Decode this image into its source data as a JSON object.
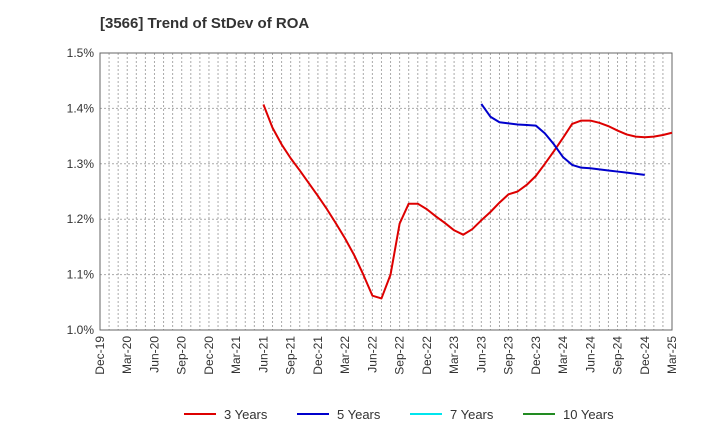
{
  "chart_data": {
    "type": "line",
    "title": "[3566]  Trend of StDev of ROA",
    "xlabel": "",
    "ylabel": "",
    "ylim": [
      1.0,
      1.5
    ],
    "yticks": [
      1.0,
      1.1,
      1.2,
      1.3,
      1.4,
      1.5
    ],
    "ytick_labels": [
      "1.0%",
      "1.1%",
      "1.2%",
      "1.3%",
      "1.4%",
      "1.5%"
    ],
    "x_start": "2019-12",
    "x_end": "2025-03",
    "xtick_labels": [
      "Dec-19",
      "Mar-20",
      "Jun-20",
      "Sep-20",
      "Dec-20",
      "Mar-21",
      "Jun-21",
      "Sep-21",
      "Dec-21",
      "Mar-22",
      "Jun-22",
      "Sep-22",
      "Dec-22",
      "Mar-23",
      "Jun-23",
      "Sep-23",
      "Dec-23",
      "Mar-24",
      "Jun-24",
      "Sep-24",
      "Dec-24",
      "Mar-25"
    ],
    "grid": true,
    "legend_position": "bottom",
    "series": [
      {
        "name": "3 Years",
        "color": "#dd0000",
        "points": [
          [
            "2021-06",
            1.407
          ],
          [
            "2021-07",
            1.365
          ],
          [
            "2021-08",
            1.335
          ],
          [
            "2021-09",
            1.31
          ],
          [
            "2021-10",
            1.288
          ],
          [
            "2021-11",
            1.265
          ],
          [
            "2021-12",
            1.242
          ],
          [
            "2022-01",
            1.218
          ],
          [
            "2022-02",
            1.192
          ],
          [
            "2022-03",
            1.165
          ],
          [
            "2022-04",
            1.135
          ],
          [
            "2022-05",
            1.1
          ],
          [
            "2022-06",
            1.062
          ],
          [
            "2022-07",
            1.057
          ],
          [
            "2022-08",
            1.1
          ],
          [
            "2022-09",
            1.192
          ],
          [
            "2022-10",
            1.228
          ],
          [
            "2022-11",
            1.228
          ],
          [
            "2022-12",
            1.218
          ],
          [
            "2023-01",
            1.205
          ],
          [
            "2023-02",
            1.193
          ],
          [
            "2023-03",
            1.18
          ],
          [
            "2023-04",
            1.172
          ],
          [
            "2023-05",
            1.182
          ],
          [
            "2023-06",
            1.198
          ],
          [
            "2023-07",
            1.213
          ],
          [
            "2023-08",
            1.23
          ],
          [
            "2023-09",
            1.245
          ],
          [
            "2023-10",
            1.25
          ],
          [
            "2023-11",
            1.262
          ],
          [
            "2023-12",
            1.278
          ],
          [
            "2024-01",
            1.3
          ],
          [
            "2024-02",
            1.323
          ],
          [
            "2024-03",
            1.347
          ],
          [
            "2024-04",
            1.372
          ],
          [
            "2024-05",
            1.378
          ],
          [
            "2024-06",
            1.378
          ],
          [
            "2024-07",
            1.374
          ],
          [
            "2024-08",
            1.368
          ],
          [
            "2024-09",
            1.36
          ],
          [
            "2024-10",
            1.353
          ],
          [
            "2024-11",
            1.349
          ],
          [
            "2024-12",
            1.348
          ],
          [
            "2025-01",
            1.349
          ],
          [
            "2025-02",
            1.352
          ],
          [
            "2025-03",
            1.356
          ]
        ]
      },
      {
        "name": "5 Years",
        "color": "#0000cc",
        "points": [
          [
            "2023-06",
            1.408
          ],
          [
            "2023-07",
            1.385
          ],
          [
            "2023-08",
            1.375
          ],
          [
            "2023-09",
            1.373
          ],
          [
            "2023-10",
            1.371
          ],
          [
            "2023-11",
            1.37
          ],
          [
            "2023-12",
            1.369
          ],
          [
            "2024-01",
            1.355
          ],
          [
            "2024-02",
            1.335
          ],
          [
            "2024-03",
            1.312
          ],
          [
            "2024-04",
            1.298
          ],
          [
            "2024-05",
            1.293
          ],
          [
            "2024-06",
            1.292
          ],
          [
            "2024-07",
            1.29
          ],
          [
            "2024-08",
            1.288
          ],
          [
            "2024-09",
            1.286
          ],
          [
            "2024-10",
            1.284
          ],
          [
            "2024-11",
            1.282
          ],
          [
            "2024-12",
            1.28
          ]
        ]
      },
      {
        "name": "7 Years",
        "color": "#00e5ee",
        "points": []
      },
      {
        "name": "10 Years",
        "color": "#228b22",
        "points": []
      }
    ]
  }
}
